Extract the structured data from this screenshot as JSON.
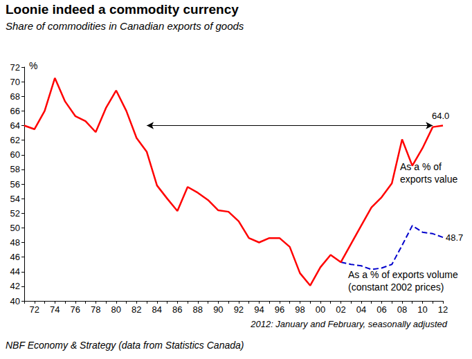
{
  "chart_data": {
    "type": "line",
    "title": "Loonie indeed a commodity currency",
    "subtitle": "Share of commodities in Canadian exports of goods",
    "y_unit": "%",
    "note": "2012: January and February, seasonally adjusted",
    "source": "NBF Economy & Strategy (data from Statistics Canada)",
    "categories": [
      null,
      "72",
      null,
      "74",
      null,
      "76",
      null,
      "78",
      null,
      "80",
      null,
      "82",
      null,
      "84",
      null,
      "86",
      null,
      "88",
      null,
      "90",
      null,
      "92",
      null,
      "94",
      null,
      "96",
      null,
      "98",
      null,
      "00",
      null,
      "02",
      null,
      "04",
      null,
      "06",
      null,
      "08",
      null,
      "10",
      null,
      "12"
    ],
    "series": [
      {
        "name": "As a % of\nexports value",
        "color": "#ff0000",
        "line_style": "solid",
        "end_label": "64.0",
        "values": [
          64.0,
          63.5,
          66.0,
          70.5,
          67.3,
          65.3,
          64.6,
          63.1,
          66.4,
          68.8,
          66.0,
          62.3,
          60.4,
          55.8,
          54.0,
          52.3,
          55.6,
          54.8,
          53.8,
          52.4,
          52.2,
          50.9,
          48.6,
          48.0,
          48.6,
          48.6,
          47.4,
          43.8,
          42.1,
          44.6,
          46.3,
          45.3,
          47.8,
          50.3,
          52.8,
          54.2,
          56.1,
          62.1,
          58.5,
          60.9,
          63.8,
          64.0
        ]
      },
      {
        "name": "As a % of exports volume\n(constant 2002 prices)",
        "color": "#0000cc",
        "line_style": "dashed",
        "end_label": "48.7",
        "values": [
          null,
          null,
          null,
          null,
          null,
          null,
          null,
          null,
          null,
          null,
          null,
          null,
          null,
          null,
          null,
          null,
          null,
          null,
          null,
          null,
          null,
          null,
          null,
          null,
          null,
          null,
          null,
          null,
          null,
          null,
          null,
          45.3,
          45.0,
          44.8,
          44.3,
          44.5,
          45.0,
          47.6,
          50.3,
          49.4,
          49.2,
          48.7
        ]
      }
    ],
    "arrow": {
      "x_index": [
        12,
        40
      ],
      "y": 64
    },
    "ylim": [
      40,
      72
    ],
    "yticks": [
      40,
      42,
      44,
      46,
      48,
      50,
      52,
      54,
      56,
      58,
      60,
      62,
      64,
      66,
      68,
      70,
      72
    ],
    "grid": false
  }
}
